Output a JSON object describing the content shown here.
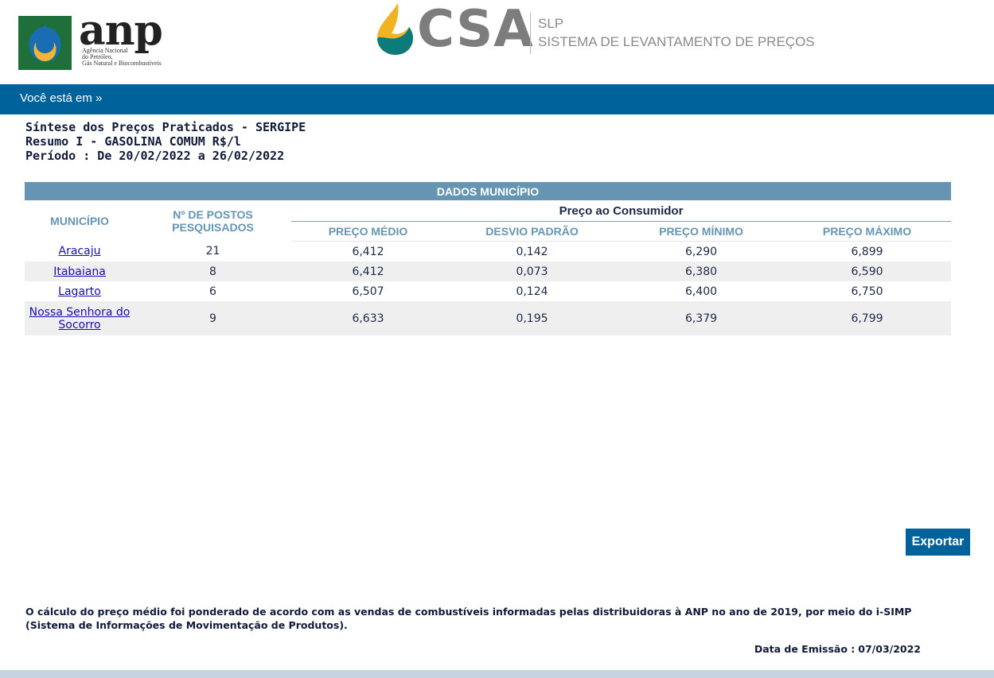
{
  "header": {
    "anp": {
      "wordmark": "anp",
      "subtitle_lines": [
        "Agência Nacional",
        "do Petróleo,",
        "Gás Natural e Biocombustíveis"
      ],
      "colors": {
        "green": "#1e6f3a",
        "blue": "#1b6db3",
        "yellow": "#f2b632"
      }
    },
    "csa": {
      "wordmark": "CSA",
      "acronym": "SLP",
      "system_name": "SISTEMA DE LEVANTAMENTO DE PREÇOS",
      "colors": {
        "drop_top": "#f0b323",
        "drop_bottom": "#0c7b7a",
        "text": "#7d7d7d"
      }
    }
  },
  "breadcrumb": {
    "label": "Você está em »"
  },
  "summary": {
    "line1": "Síntese dos Preços Praticados - SERGIPE",
    "line2": "Resumo I - GASOLINA COMUM R$/l",
    "line3": "Período : De 20/02/2022 a 26/02/2022"
  },
  "table": {
    "caption": "DADOS MUNICÍPIO",
    "headers": {
      "municipio": "MUNICÍPIO",
      "postos": "Nº DE POSTOS PESQUISADOS",
      "group": "Preço ao Consumidor",
      "preco_medio": "PREÇO MÉDIO",
      "desvio": "DESVIO PADRÃO",
      "preco_minimo": "PREÇO MÍNIMO",
      "preco_maximo": "PREÇO MÁXIMO"
    },
    "rows": [
      {
        "municipio": "Aracaju",
        "postos": "21",
        "medio": "6,412",
        "desvio": "0,142",
        "minimo": "6,290",
        "maximo": "6,899"
      },
      {
        "municipio": "Itabaiana",
        "postos": "8",
        "medio": "6,412",
        "desvio": "0,073",
        "minimo": "6,380",
        "maximo": "6,590"
      },
      {
        "municipio": "Lagarto",
        "postos": "6",
        "medio": "6,507",
        "desvio": "0,124",
        "minimo": "6,400",
        "maximo": "6,750"
      },
      {
        "municipio": "Nossa Senhora do Socorro",
        "postos": "9",
        "medio": "6,633",
        "desvio": "0,195",
        "minimo": "6,379",
        "maximo": "6,799"
      }
    ]
  },
  "export_label": "Exportar",
  "footnote": "O cálculo do preço médio foi ponderado de acordo com as vendas de combustíveis informadas pelas distribuidoras à ANP no ano de 2019, por meio do i-SIMP (Sistema de Informações de Movimentação de Produtos).",
  "emission": {
    "label": "Data de Emissão :",
    "date": "07/03/2022"
  },
  "colors": {
    "brand_blue": "#00629a",
    "table_header": "#6595b3",
    "row_alt": "#efefef"
  }
}
